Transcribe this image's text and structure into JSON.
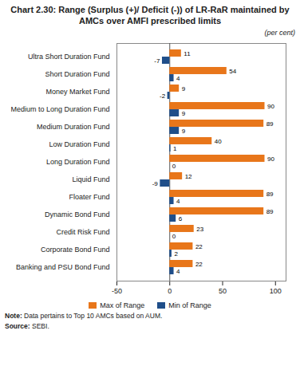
{
  "chart_data": {
    "type": "bar",
    "orientation": "horizontal",
    "title": "Chart 2.30: Range (Surplus (+)/ Deficit (-)) of LR-RaR maintained by\nAMCs over AMFI prescribed limits",
    "subtitle": "(per cent)",
    "categories": [
      "Ultra Short Duration Fund",
      "Short Duration Fund",
      "Money Market Fund",
      "Medium to Long Duration Fund",
      "Medium Duration Fund",
      "Low Duration Fund",
      "Long Duration Fund",
      "Liquid Fund",
      "Floater Fund",
      "Dynamic Bond Fund",
      "Credit Risk Fund",
      "Corporate Bond Fund",
      "Banking and PSU Bond Fund"
    ],
    "series": [
      {
        "name": "Max of Range",
        "color": "#E8761A",
        "values": [
          11,
          54,
          9,
          90,
          89,
          40,
          90,
          12,
          89,
          89,
          23,
          22,
          22
        ]
      },
      {
        "name": "Min of Range",
        "color": "#1F4E89",
        "values": [
          -7,
          4,
          -2,
          9,
          9,
          1,
          0,
          -9,
          4,
          6,
          0,
          2,
          4
        ]
      }
    ],
    "xlim": [
      -50,
      110
    ],
    "xticks": [
      -50,
      0,
      50,
      100
    ],
    "data_labels": true,
    "legend": "bottom",
    "grid": false,
    "annotations": [
      "Note: Data pertains to Top 10 AMCs based on AUM.",
      "Source: SEBI."
    ]
  }
}
